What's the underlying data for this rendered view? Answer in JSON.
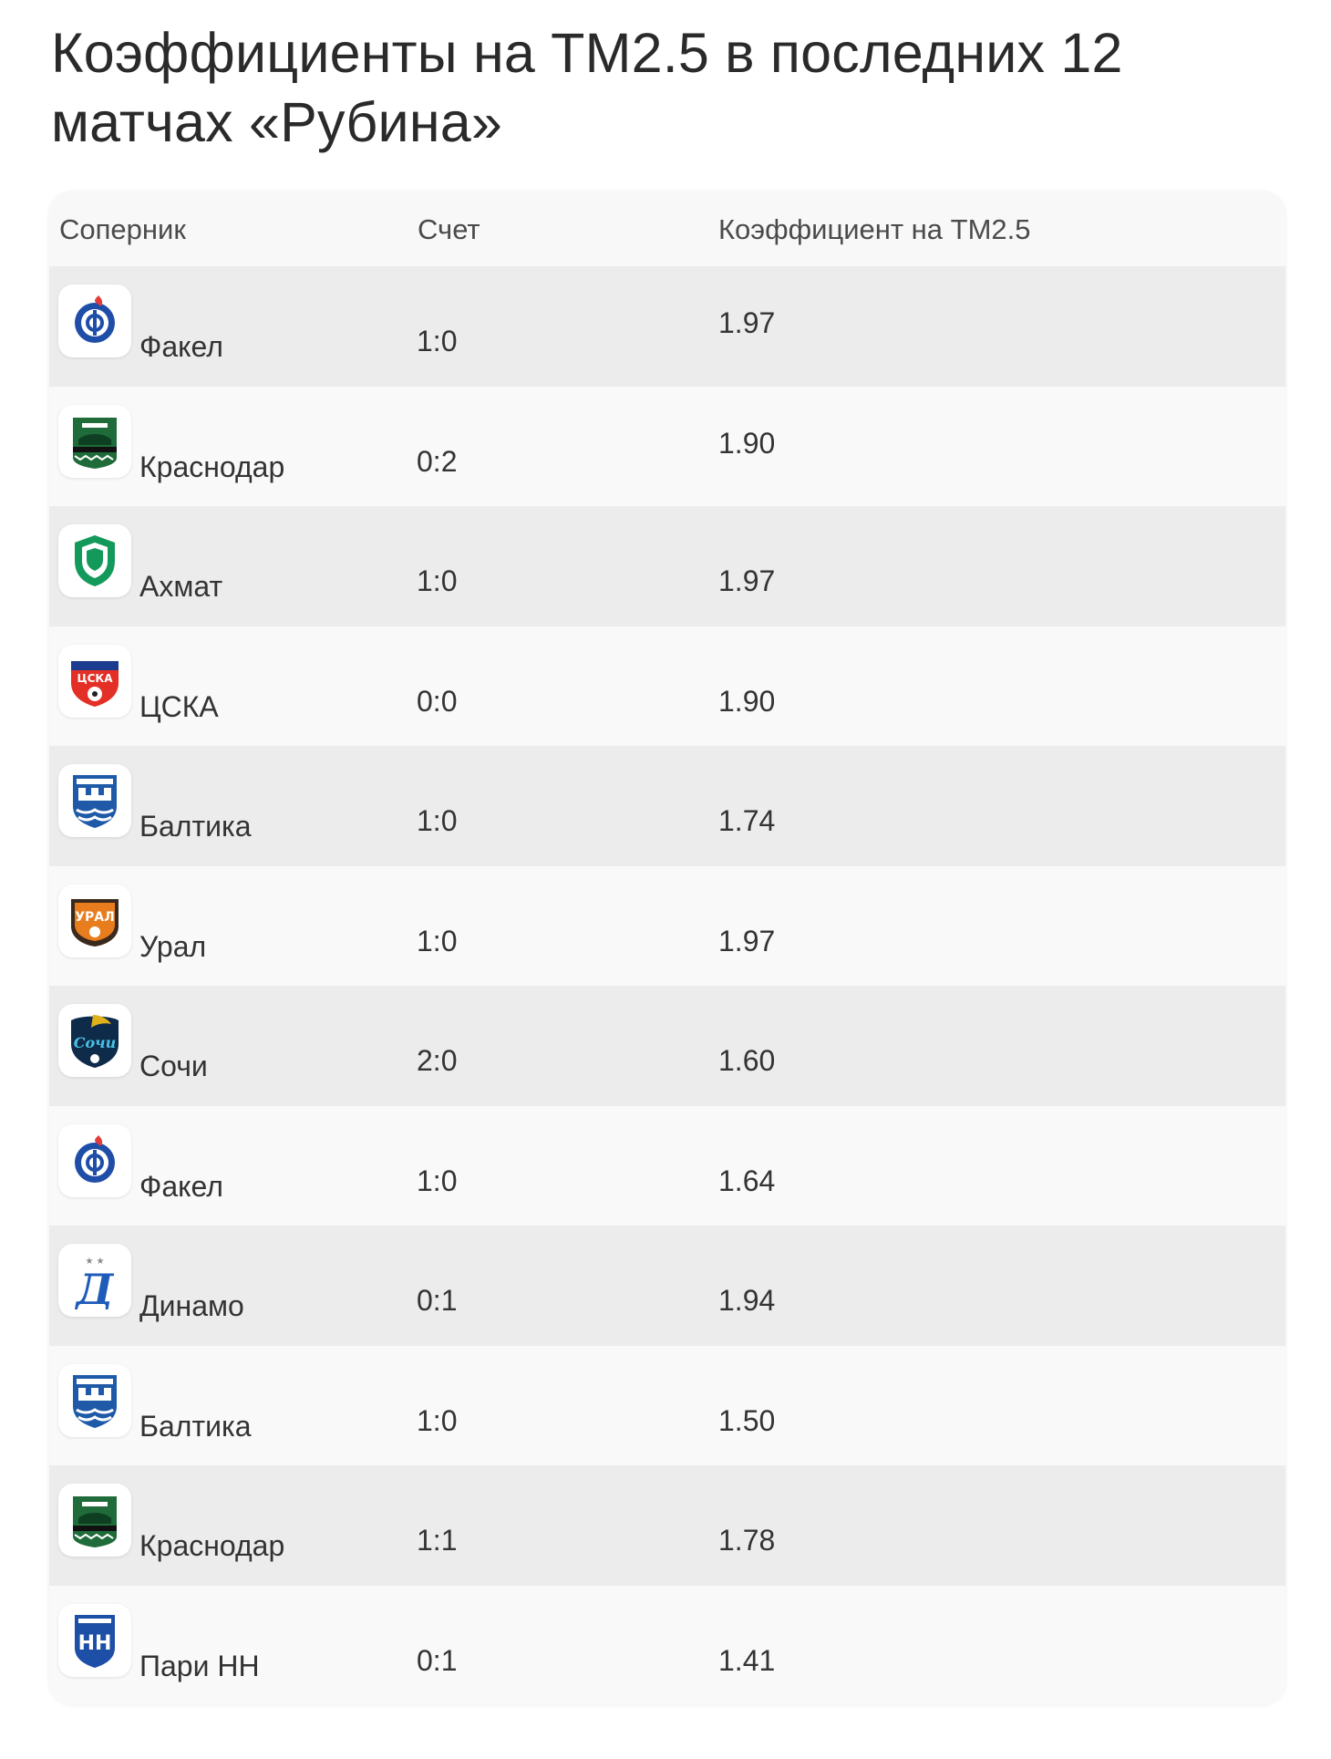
{
  "title": "Коэффициенты на ТМ2.5 в последних 12 матчах «Рубина»",
  "table": {
    "headers": {
      "opponent": "Соперник",
      "score": "Счет",
      "odds": "Коэффициент на ТМ2.5"
    },
    "rows": [
      {
        "logo": "fakel-logo-icon",
        "team": "Факел",
        "score": "1:0",
        "odds": "1.97"
      },
      {
        "logo": "krasnodar-logo-icon",
        "team": "Краснодар",
        "score": "0:2",
        "odds": "1.90"
      },
      {
        "logo": "akhmat-logo-icon",
        "team": "Ахмат",
        "score": "1:0",
        "odds": "1.97"
      },
      {
        "logo": "cska-logo-icon",
        "team": "ЦСКА",
        "score": "0:0",
        "odds": "1.90"
      },
      {
        "logo": "baltika-logo-icon",
        "team": "Балтика",
        "score": "1:0",
        "odds": "1.74"
      },
      {
        "logo": "ural-logo-icon",
        "team": "Урал",
        "score": "1:0",
        "odds": "1.97"
      },
      {
        "logo": "sochi-logo-icon",
        "team": "Сочи",
        "score": "2:0",
        "odds": "1.60"
      },
      {
        "logo": "fakel-logo-icon",
        "team": "Факел",
        "score": "1:0",
        "odds": "1.64"
      },
      {
        "logo": "dinamo-logo-icon",
        "team": "Динамо",
        "score": "0:1",
        "odds": "1.94"
      },
      {
        "logo": "baltika-logo-icon",
        "team": "Балтика",
        "score": "1:0",
        "odds": "1.50"
      },
      {
        "logo": "krasnodar-logo-icon",
        "team": "Краснодар",
        "score": "1:1",
        "odds": "1.78"
      },
      {
        "logo": "pari-nn-logo-icon",
        "team": "Пари НН",
        "score": "0:1",
        "odds": "1.41"
      }
    ]
  },
  "colors": {
    "row_odd": "#ececec",
    "row_even": "#f9f9f9",
    "header_bg": "#f8f8f8",
    "text": "#333333"
  }
}
